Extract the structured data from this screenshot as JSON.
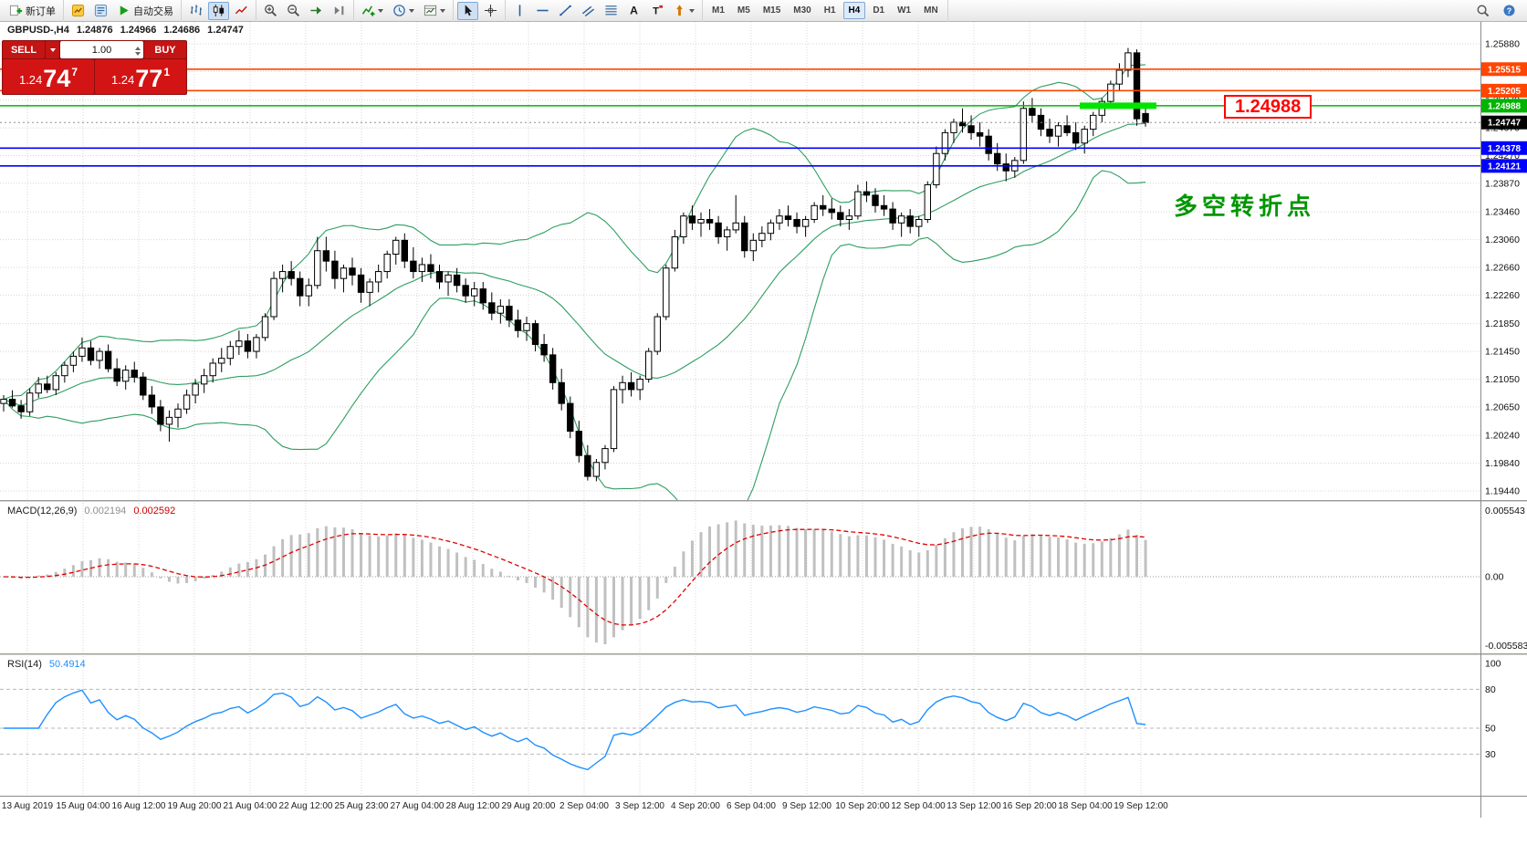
{
  "toolbar": {
    "groups": [
      {
        "items": [
          {
            "name": "new-order-button",
            "icon": "new-order-icon",
            "label": "新订单"
          }
        ]
      },
      {
        "items": [
          {
            "name": "market-watch-button",
            "icon": "market-watch-icon"
          },
          {
            "name": "data-window-button",
            "icon": "data-window-icon"
          },
          {
            "name": "autotrading-button",
            "icon": "autotrading-icon",
            "label": "自动交易"
          }
        ]
      },
      {
        "items": [
          {
            "name": "bar-chart-button",
            "icon": "bar-chart-icon"
          },
          {
            "name": "candlestick-button",
            "icon": "candlestick-icon",
            "active": true
          },
          {
            "name": "line-chart-button",
            "icon": "line-chart-icon"
          }
        ]
      },
      {
        "items": [
          {
            "name": "zoom-in-button",
            "icon": "zoom-in-icon"
          },
          {
            "name": "zoom-out-button",
            "icon": "zoom-out-icon"
          },
          {
            "name": "auto-scroll-button",
            "icon": "auto-scroll-icon"
          },
          {
            "name": "chart-shift-button",
            "icon": "chart-shift-icon"
          }
        ]
      },
      {
        "items": [
          {
            "name": "indicators-button",
            "icon": "indicators-icon",
            "dropdown": true
          },
          {
            "name": "periods-button",
            "icon": "periods-icon",
            "dropdown": true
          },
          {
            "name": "templates-button",
            "icon": "templates-icon",
            "dropdown": true
          }
        ]
      },
      {
        "items": [
          {
            "name": "cursor-button",
            "icon": "cursor-icon",
            "active": true
          },
          {
            "name": "crosshair-button",
            "icon": "crosshair-icon"
          }
        ]
      },
      {
        "items": [
          {
            "name": "vertical-line-button",
            "icon": "vertical-line-icon"
          },
          {
            "name": "horizontal-line-button",
            "icon": "horizontal-line-icon"
          },
          {
            "name": "trendline-button",
            "icon": "trendline-icon"
          },
          {
            "name": "channel-button",
            "icon": "channel-icon"
          },
          {
            "name": "fibonacci-button",
            "icon": "fibonacci-icon"
          },
          {
            "name": "text-button",
            "icon": "text-icon"
          },
          {
            "name": "text-label-button",
            "icon": "text-label-icon"
          },
          {
            "name": "arrows-button",
            "icon": "arrows-icon",
            "dropdown": true
          }
        ]
      }
    ],
    "timeframes": [
      "M1",
      "M5",
      "M15",
      "M30",
      "H1",
      "H4",
      "D1",
      "W1",
      "MN"
    ],
    "active_timeframe": "H4",
    "right_items": [
      {
        "name": "search-button",
        "icon": "search-icon"
      },
      {
        "name": "help-button",
        "icon": "help-icon"
      }
    ]
  },
  "chart_header": {
    "symbol_period": "GBPUSD-,H4",
    "open": "1.24876",
    "high": "1.24966",
    "low": "1.24686",
    "close": "1.24747"
  },
  "trade_panel": {
    "sell_label": "SELL",
    "buy_label": "BUY",
    "volume": "1.00",
    "sell_price": {
      "base": "1.24",
      "big": "74",
      "sup": "7"
    },
    "buy_price": {
      "base": "1.24",
      "big": "77",
      "sup": "1"
    }
  },
  "annotations": {
    "price_callout": "1.24988",
    "turning_point_text": "多空转折点"
  },
  "indicators": {
    "macd": {
      "label": "MACD(12,26,9)",
      "value_main": "0.002194",
      "value_signal": "0.002592",
      "scale_top": "0.005543",
      "scale_zero": "0.00",
      "scale_bottom": "-0.005583"
    },
    "rsi": {
      "label": "RSI(14)",
      "value": "50.4914",
      "scale": [
        "100",
        "80",
        "50",
        "30"
      ],
      "levels": [
        80,
        50,
        30
      ]
    }
  },
  "colors": {
    "resistance": "#ff4500",
    "support": "#0000ff",
    "target": "#00b400",
    "target_bright": "#00e400",
    "bid": "#000000",
    "bollinger": "#2e9e5f",
    "macd_hist": "#c0c0c0",
    "macd_signal": "#e00000",
    "rsi_line": "#1e90ff",
    "annotation_green": "#009600",
    "callout_red": "#ff0000"
  },
  "chart_data": {
    "type": "candlestick",
    "title": "GBPUSD- H4",
    "y_range": [
      1.1944,
      1.2588
    ],
    "y_ticks": [
      "1.25880",
      "1.25480",
      "1.25070",
      "1.24670",
      "1.24270",
      "1.23870",
      "1.23460",
      "1.23060",
      "1.22660",
      "1.22260",
      "1.21850",
      "1.21450",
      "1.21050",
      "1.20650",
      "1.20240",
      "1.19840",
      "1.19440"
    ],
    "x_labels": [
      "13 Aug 2019",
      "15 Aug 04:00",
      "16 Aug 12:00",
      "19 Aug 20:00",
      "21 Aug 04:00",
      "22 Aug 12:00",
      "25 Aug 23:00",
      "27 Aug 04:00",
      "28 Aug 12:00",
      "29 Aug 20:00",
      "2 Sep 04:00",
      "3 Sep 12:00",
      "4 Sep 20:00",
      "6 Sep 04:00",
      "9 Sep 12:00",
      "10 Sep 20:00",
      "12 Sep 04:00",
      "13 Sep 12:00",
      "16 Sep 20:00",
      "18 Sep 04:00",
      "19 Sep 12:00"
    ],
    "levels": [
      {
        "price": 1.25515,
        "label": "1.25515",
        "color": "#ff4500"
      },
      {
        "price": 1.25205,
        "label": "1.25205",
        "color": "#ff4500"
      },
      {
        "price": 1.24988,
        "label": "1.24988",
        "color": "#00b400",
        "highlight": true
      },
      {
        "price": 1.24747,
        "label": "1.24747",
        "color": "#000000",
        "style": "dotted",
        "role": "bid"
      },
      {
        "price": 1.24378,
        "label": "1.24378",
        "color": "#0000ff"
      },
      {
        "price": 1.24121,
        "label": "1.24121",
        "color": "#0000ff"
      }
    ],
    "bollinger": {
      "period": 20,
      "deviations": 2
    },
    "candles": [
      [
        1.207,
        1.2082,
        1.20585,
        1.2076
      ],
      [
        1.2076,
        1.2089,
        1.2064,
        1.20665
      ],
      [
        1.20665,
        1.2075,
        1.2048,
        1.2058
      ],
      [
        1.2058,
        1.2092,
        1.2052,
        1.2085
      ],
      [
        1.2085,
        1.2108,
        1.2078,
        1.2098
      ],
      [
        1.2098,
        1.211,
        1.2085,
        1.209
      ],
      [
        1.209,
        1.2115,
        1.2082,
        1.211
      ],
      [
        1.211,
        1.213,
        1.21,
        1.2125
      ],
      [
        1.2125,
        1.2145,
        1.2115,
        1.2138
      ],
      [
        1.2138,
        1.2165,
        1.213,
        1.215
      ],
      [
        1.215,
        1.216,
        1.2125,
        1.2132
      ],
      [
        1.2132,
        1.215,
        1.212,
        1.2145
      ],
      [
        1.2145,
        1.2155,
        1.2115,
        1.212
      ],
      [
        1.212,
        1.2135,
        1.2095,
        1.2102
      ],
      [
        1.2102,
        1.2125,
        1.209,
        1.2118
      ],
      [
        1.2118,
        1.213,
        1.21,
        1.2108
      ],
      [
        1.2108,
        1.2115,
        1.2075,
        1.2082
      ],
      [
        1.2082,
        1.2095,
        1.2055,
        1.2065
      ],
      [
        1.2065,
        1.2075,
        1.203,
        1.204
      ],
      [
        1.204,
        1.206,
        1.2015,
        1.205
      ],
      [
        1.205,
        1.207,
        1.2035,
        1.2062
      ],
      [
        1.2062,
        1.209,
        1.2055,
        1.2082
      ],
      [
        1.2082,
        1.2105,
        1.207,
        1.2098
      ],
      [
        1.2098,
        1.212,
        1.2085,
        1.211
      ],
      [
        1.211,
        1.2135,
        1.21,
        1.2128
      ],
      [
        1.2128,
        1.215,
        1.2115,
        1.2135
      ],
      [
        1.2135,
        1.216,
        1.2125,
        1.2152
      ],
      [
        1.2152,
        1.2175,
        1.214,
        1.216
      ],
      [
        1.216,
        1.217,
        1.2135,
        1.2145
      ],
      [
        1.2145,
        1.217,
        1.2135,
        1.2165
      ],
      [
        1.2165,
        1.22,
        1.216,
        1.2195
      ],
      [
        1.2195,
        1.226,
        1.219,
        1.225
      ],
      [
        1.225,
        1.227,
        1.223,
        1.226
      ],
      [
        1.226,
        1.2275,
        1.224,
        1.225
      ],
      [
        1.225,
        1.226,
        1.221,
        1.2225
      ],
      [
        1.2225,
        1.225,
        1.221,
        1.224
      ],
      [
        1.224,
        1.231,
        1.2235,
        1.229
      ],
      [
        1.229,
        1.231,
        1.226,
        1.2275
      ],
      [
        1.2275,
        1.229,
        1.2235,
        1.225
      ],
      [
        1.225,
        1.227,
        1.223,
        1.2265
      ],
      [
        1.2265,
        1.228,
        1.224,
        1.2255
      ],
      [
        1.2255,
        1.2265,
        1.2215,
        1.223
      ],
      [
        1.223,
        1.225,
        1.221,
        1.2245
      ],
      [
        1.2245,
        1.227,
        1.223,
        1.226
      ],
      [
        1.226,
        1.229,
        1.225,
        1.2285
      ],
      [
        1.2285,
        1.231,
        1.227,
        1.2305
      ],
      [
        1.2305,
        1.2315,
        1.2265,
        1.2275
      ],
      [
        1.2275,
        1.2295,
        1.225,
        1.226
      ],
      [
        1.226,
        1.228,
        1.2245,
        1.227
      ],
      [
        1.227,
        1.2285,
        1.225,
        1.226
      ],
      [
        1.226,
        1.227,
        1.2235,
        1.2245
      ],
      [
        1.2245,
        1.226,
        1.2225,
        1.2255
      ],
      [
        1.2255,
        1.2265,
        1.223,
        1.224
      ],
      [
        1.224,
        1.225,
        1.2215,
        1.2225
      ],
      [
        1.2225,
        1.2245,
        1.221,
        1.2235
      ],
      [
        1.2235,
        1.2245,
        1.2205,
        1.2215
      ],
      [
        1.2215,
        1.223,
        1.219,
        1.22
      ],
      [
        1.22,
        1.222,
        1.2185,
        1.221
      ],
      [
        1.221,
        1.222,
        1.218,
        1.219
      ],
      [
        1.219,
        1.2205,
        1.2165,
        1.2175
      ],
      [
        1.2175,
        1.2195,
        1.216,
        1.2185
      ],
      [
        1.2185,
        1.219,
        1.2145,
        1.2155
      ],
      [
        1.2155,
        1.217,
        1.213,
        1.214
      ],
      [
        1.214,
        1.215,
        1.209,
        1.21
      ],
      [
        1.21,
        1.212,
        1.206,
        1.207
      ],
      [
        1.207,
        1.208,
        1.202,
        1.203
      ],
      [
        1.203,
        1.2045,
        1.1985,
        1.1995
      ],
      [
        1.1995,
        1.201,
        1.1959,
        1.1965
      ],
      [
        1.1965,
        1.199,
        1.1958,
        1.1985
      ],
      [
        1.1985,
        1.201,
        1.1975,
        1.2005
      ],
      [
        1.2005,
        1.2095,
        1.2,
        1.209
      ],
      [
        1.209,
        1.211,
        1.207,
        1.21
      ],
      [
        1.21,
        1.2115,
        1.208,
        1.209
      ],
      [
        1.209,
        1.211,
        1.2075,
        1.2105
      ],
      [
        1.2105,
        1.215,
        1.21,
        1.2145
      ],
      [
        1.2145,
        1.22,
        1.214,
        1.2195
      ],
      [
        1.2195,
        1.227,
        1.219,
        1.2265
      ],
      [
        1.2265,
        1.232,
        1.226,
        1.231
      ],
      [
        1.231,
        1.2345,
        1.23,
        1.234
      ],
      [
        1.234,
        1.2355,
        1.232,
        1.233
      ],
      [
        1.233,
        1.2345,
        1.231,
        1.2335
      ],
      [
        1.2335,
        1.235,
        1.232,
        1.233
      ],
      [
        1.233,
        1.234,
        1.23,
        1.231
      ],
      [
        1.231,
        1.2325,
        1.229,
        1.232
      ],
      [
        1.232,
        1.237,
        1.2315,
        1.233
      ],
      [
        1.233,
        1.234,
        1.228,
        1.229
      ],
      [
        1.229,
        1.2315,
        1.2275,
        1.2305
      ],
      [
        1.2305,
        1.2325,
        1.2295,
        1.2315
      ],
      [
        1.2315,
        1.2335,
        1.2305,
        1.233
      ],
      [
        1.233,
        1.235,
        1.232,
        1.234
      ],
      [
        1.234,
        1.2355,
        1.2325,
        1.2335
      ],
      [
        1.2335,
        1.2345,
        1.2315,
        1.2325
      ],
      [
        1.2325,
        1.234,
        1.231,
        1.2335
      ],
      [
        1.2335,
        1.236,
        1.233,
        1.2355
      ],
      [
        1.2355,
        1.237,
        1.234,
        1.235
      ],
      [
        1.235,
        1.2365,
        1.2335,
        1.2345
      ],
      [
        1.2345,
        1.2355,
        1.2325,
        1.2335
      ],
      [
        1.2335,
        1.235,
        1.232,
        1.234
      ],
      [
        1.234,
        1.2385,
        1.2335,
        1.2375
      ],
      [
        1.2375,
        1.239,
        1.236,
        1.237
      ],
      [
        1.237,
        1.238,
        1.2345,
        1.2355
      ],
      [
        1.2355,
        1.237,
        1.234,
        1.235
      ],
      [
        1.235,
        1.236,
        1.232,
        1.233
      ],
      [
        1.233,
        1.2345,
        1.231,
        1.234
      ],
      [
        1.234,
        1.235,
        1.2315,
        1.2325
      ],
      [
        1.2325,
        1.234,
        1.231,
        1.2335
      ],
      [
        1.2335,
        1.239,
        1.233,
        1.2385
      ],
      [
        1.2385,
        1.244,
        1.238,
        1.243
      ],
      [
        1.243,
        1.2465,
        1.242,
        1.246
      ],
      [
        1.246,
        1.248,
        1.2445,
        1.2475
      ],
      [
        1.2475,
        1.2495,
        1.246,
        1.247
      ],
      [
        1.247,
        1.2485,
        1.245,
        1.246
      ],
      [
        1.246,
        1.2475,
        1.244,
        1.2455
      ],
      [
        1.2455,
        1.2465,
        1.242,
        1.243
      ],
      [
        1.243,
        1.2445,
        1.2405,
        1.2415
      ],
      [
        1.2415,
        1.243,
        1.239,
        1.2405
      ],
      [
        1.2405,
        1.2425,
        1.2395,
        1.242
      ],
      [
        1.242,
        1.2505,
        1.2415,
        1.2495
      ],
      [
        1.2495,
        1.251,
        1.2475,
        1.2485
      ],
      [
        1.2485,
        1.2495,
        1.2455,
        1.2465
      ],
      [
        1.2465,
        1.248,
        1.2445,
        1.2455
      ],
      [
        1.2455,
        1.2475,
        1.244,
        1.247
      ],
      [
        1.247,
        1.2485,
        1.2455,
        1.246
      ],
      [
        1.246,
        1.2475,
        1.2435,
        1.2445
      ],
      [
        1.2445,
        1.247,
        1.243,
        1.2465
      ],
      [
        1.2465,
        1.249,
        1.2455,
        1.2485
      ],
      [
        1.2485,
        1.251,
        1.2475,
        1.2505
      ],
      [
        1.2505,
        1.2535,
        1.2495,
        1.253
      ],
      [
        1.253,
        1.256,
        1.252,
        1.255
      ],
      [
        1.255,
        1.2582,
        1.254,
        1.2575
      ],
      [
        1.2575,
        1.258,
        1.247,
        1.248
      ],
      [
        1.24876,
        1.24966,
        1.24686,
        1.24747
      ]
    ]
  }
}
